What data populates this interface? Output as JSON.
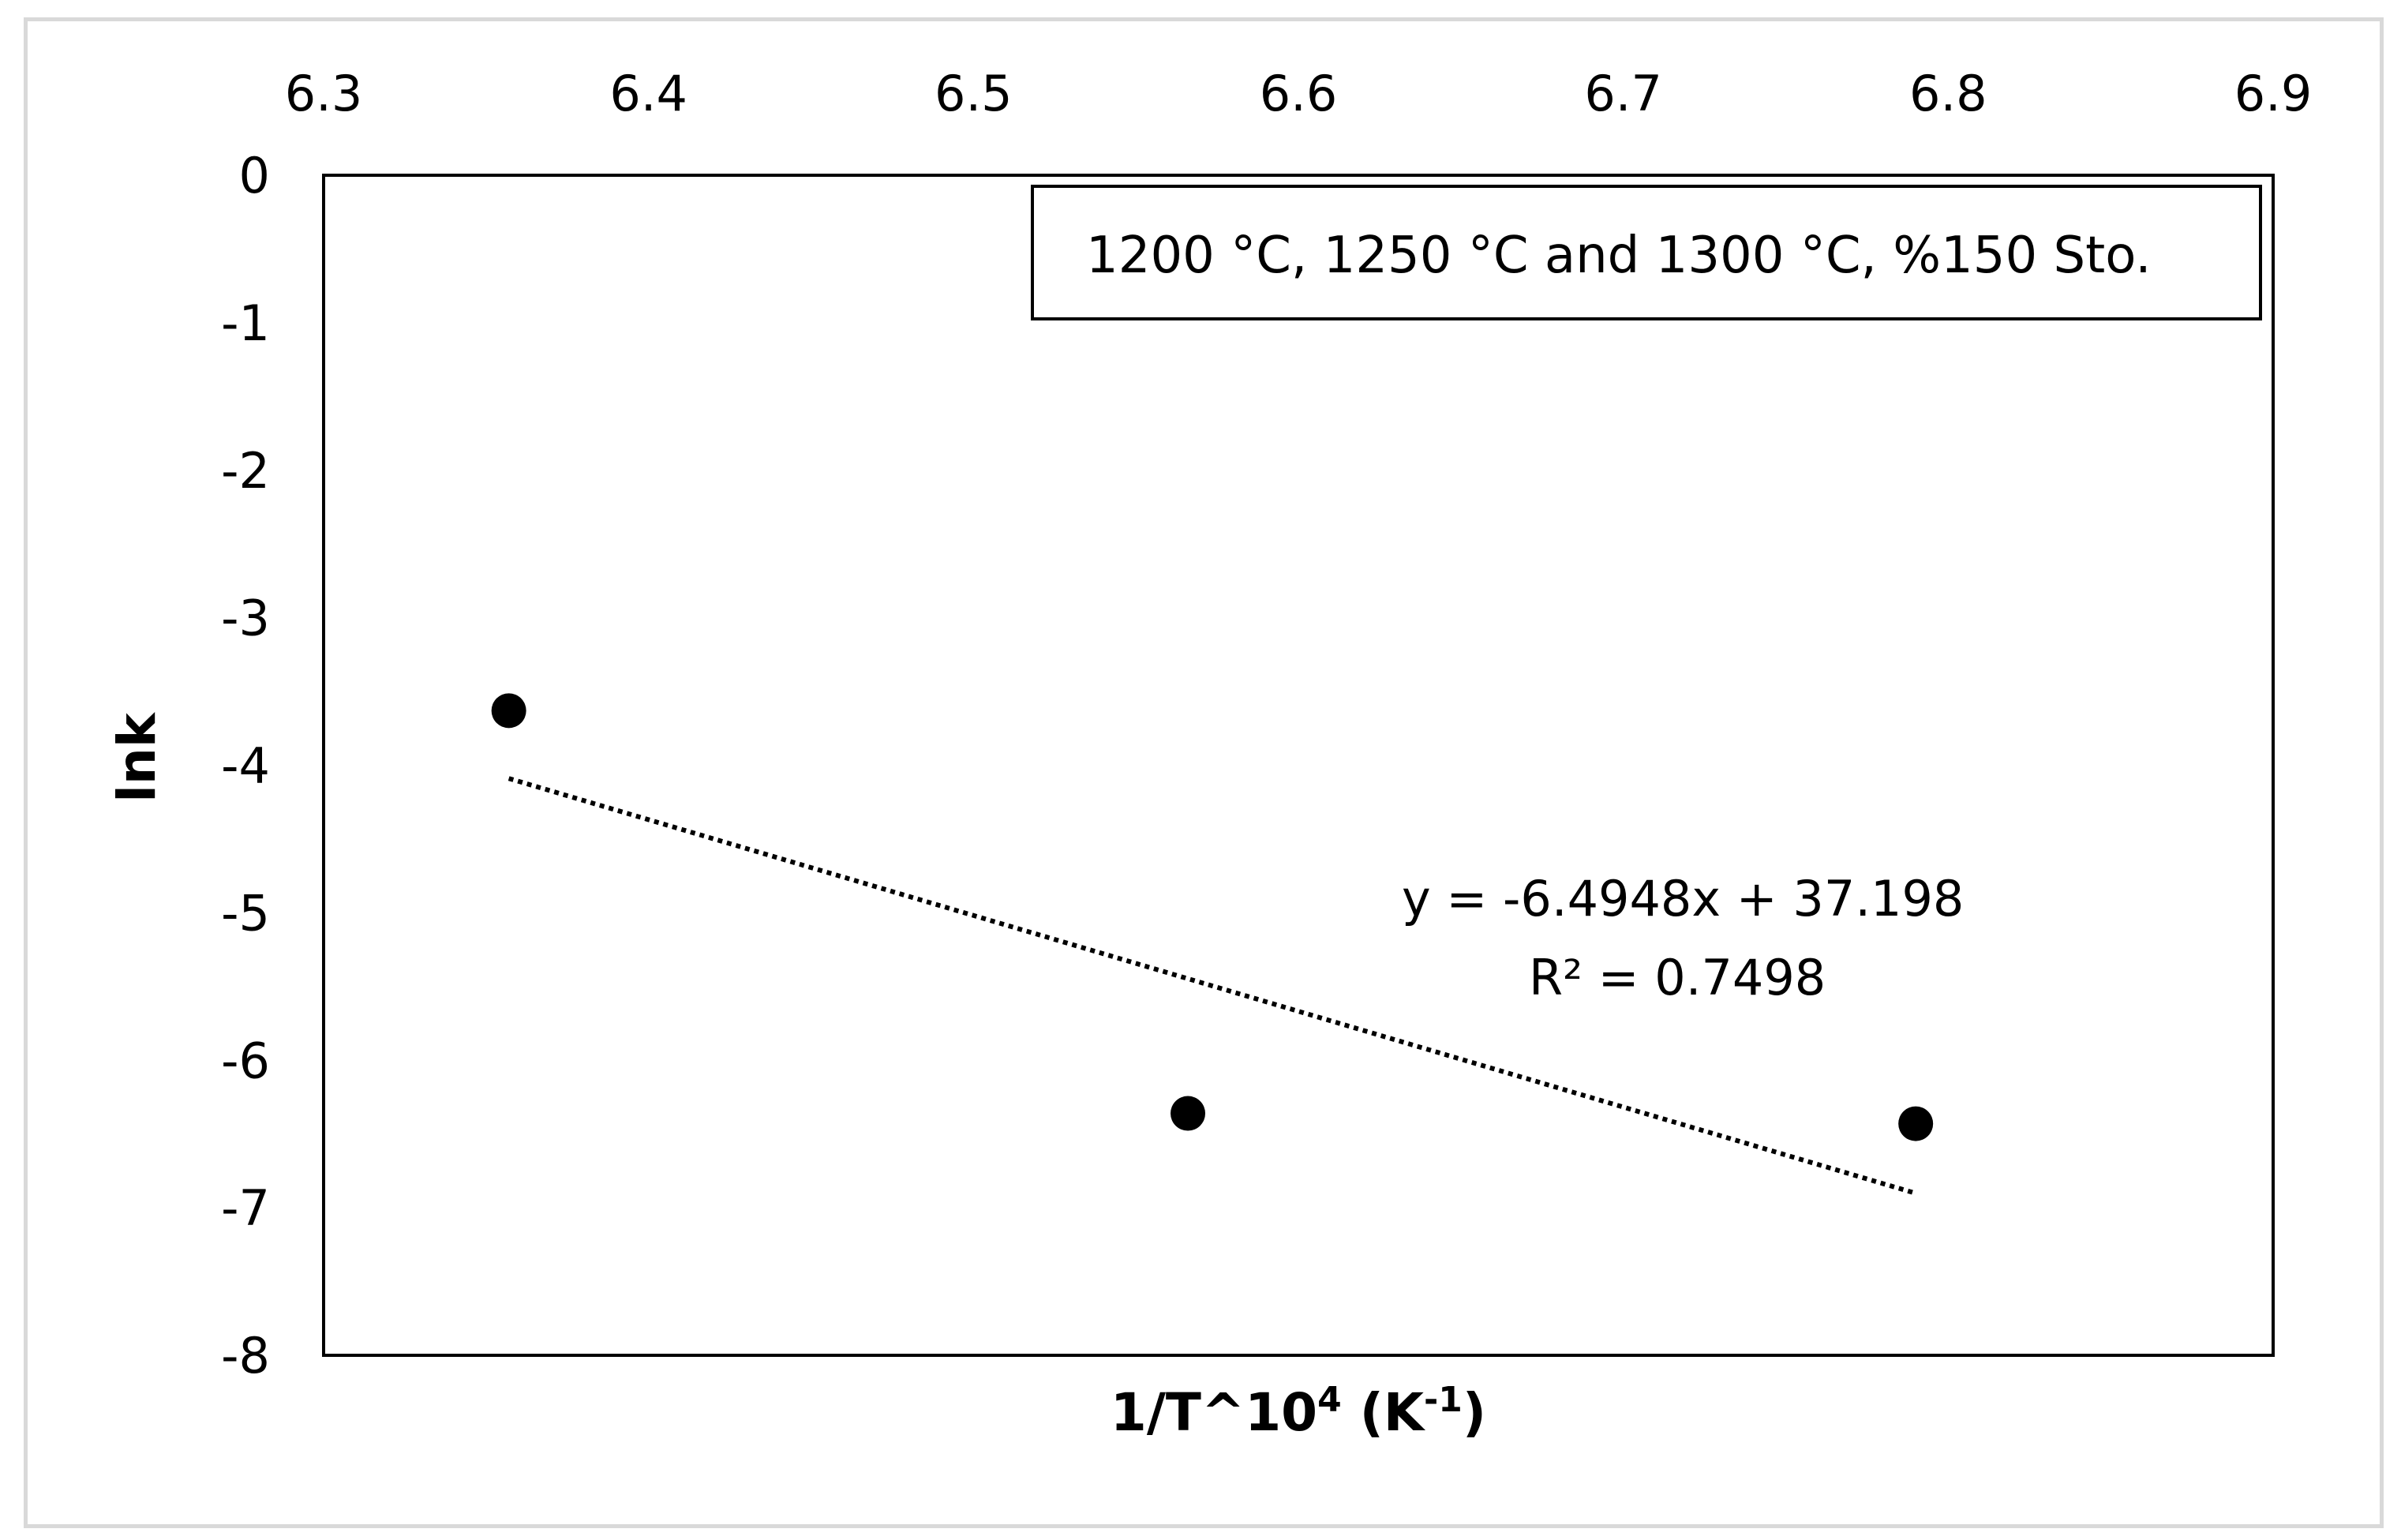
{
  "chart_data": {
    "type": "scatter",
    "xlabel_main": "1/T^10",
    "xlabel_sup": "4",
    "xlabel_unit_open": " (K",
    "xlabel_unit_sup": "-1",
    "xlabel_unit_close": ")",
    "ylabel": "lnk",
    "xlim": [
      6.3,
      6.9
    ],
    "ylim": [
      -8,
      0
    ],
    "x_ticks": [
      "6.3",
      "6.4",
      "6.5",
      "6.6",
      "6.7",
      "6.8",
      "6.9"
    ],
    "y_ticks": [
      "0",
      "-1",
      "-2",
      "-3",
      "-4",
      "-5",
      "-6",
      "-7",
      "-8"
    ],
    "x_axis_position": "top",
    "grid": false,
    "legend": {
      "text": "1200 °C, 1250 °C and 1300 °C, %150 Sto.",
      "placement": "top-right"
    },
    "series": [
      {
        "x": [
          6.357,
          6.566,
          6.79
        ],
        "y": [
          -3.63,
          -6.36,
          -6.43
        ],
        "color": "#000000"
      }
    ],
    "trendline": {
      "slope": -6.4948,
      "intercept": 37.198,
      "x_range": [
        6.357,
        6.79
      ],
      "style": "dotted",
      "equation_text": "y = -6.4948x + 37.198",
      "r2_text": "R² = 0.7498"
    }
  }
}
